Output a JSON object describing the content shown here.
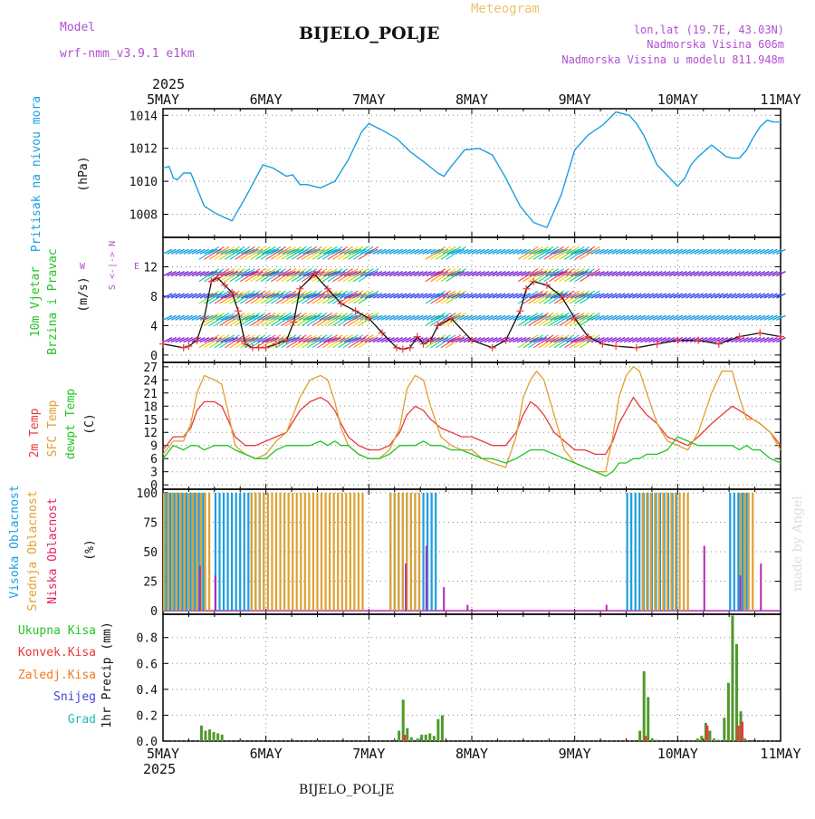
{
  "header": {
    "model_label": "Model",
    "model_name": "wrf-nmm_v3.9.1  e1km",
    "meteogram_label": "Meteogram",
    "station": "BIJELO_POLJE",
    "lonlat": "lon,lat (19.7E, 43.03N)",
    "altitude": "Nadmorska Visina 606m",
    "model_altitude": "Nadmorska Visina u modelu 811.948m",
    "footer_station": "BIJELO_POLJE",
    "watermark": "made by Angel"
  },
  "colors": {
    "pressure": "#1a9fe0",
    "temp2m": "#e83a3a",
    "sfc_temp": "#e0a030",
    "dewpoint": "#22c522",
    "high_cloud": "#1a9fe0",
    "mid_cloud": "#e0a030",
    "low_cloud": "#b02ab0",
    "precip_total": "#4f9a2a",
    "precip_conv": "#e83a3a",
    "precip_frozen": "#f07a20",
    "precip_snow": "#4444dd",
    "precip_hail": "#22bbbb",
    "header_purple": "#b050d0",
    "meteogram_title": "#f0c070"
  },
  "chart_data": [
    {
      "type": "line",
      "title": "Pritisak na nivou mora",
      "ylabel": "(hPa)",
      "x_unit": "days since 5MAY 2025 00UTC",
      "ylim": [
        1006.6,
        1014.4
      ],
      "yticks": [
        1008,
        1010,
        1012,
        1014
      ],
      "grid": true,
      "series": [
        {
          "name": "Pritisak na nivou mora",
          "x": [
            0,
            0.06,
            0.1,
            0.14,
            0.2,
            0.27,
            0.4,
            0.5,
            0.6,
            0.67,
            0.8,
            0.97,
            1.07,
            1.2,
            1.26,
            1.33,
            1.4,
            1.53,
            1.67,
            1.8,
            1.93,
            2.0,
            2.13,
            2.27,
            2.4,
            2.53,
            2.67,
            2.73,
            2.8,
            2.93,
            3.07,
            3.2,
            3.33,
            3.47,
            3.6,
            3.73,
            3.87,
            4.0,
            4.13,
            4.27,
            4.4,
            4.53,
            4.6,
            4.67,
            4.8,
            5.0,
            5.07,
            5.13,
            5.2,
            5.33,
            5.47,
            5.53,
            5.6,
            5.67,
            5.73,
            5.8,
            5.87,
            5.93,
            6.0
          ],
          "y": [
            1010.8,
            1010.9,
            1010.2,
            1010.1,
            1010.5,
            1010.5,
            1008.5,
            1008.1,
            1007.8,
            1007.6,
            1009.0,
            1011.0,
            1010.8,
            1010.3,
            1010.4,
            1009.8,
            1009.8,
            1009.6,
            1010.0,
            1011.3,
            1013.0,
            1013.5,
            1013.1,
            1012.6,
            1011.8,
            1011.2,
            1010.5,
            1010.3,
            1010.9,
            1011.9,
            1012.0,
            1011.6,
            1010.2,
            1008.5,
            1007.5,
            1007.2,
            1009.2,
            1011.9,
            1012.8,
            1013.4,
            1014.2,
            1014.0,
            1013.5,
            1012.8,
            1011.0,
            1009.7,
            1010.2,
            1011.0,
            1011.5,
            1012.2,
            1011.5,
            1011.4,
            1011.4,
            1011.9,
            1012.6,
            1013.3,
            1013.7,
            1013.6,
            1013.6
          ]
        }
      ]
    },
    {
      "type": "line",
      "title": "10m Vjetar Brzina i Pravac",
      "ylabel": "(m/s)",
      "direction_legend": "W <-|-> E, N (up), S (down)",
      "ylim": [
        -1,
        16
      ],
      "yticks": [
        0,
        4,
        8,
        12
      ],
      "extra_yticks": [
        2,
        6,
        10,
        14
      ],
      "grid": true,
      "series": [
        {
          "name": "Brzina",
          "x": [
            0,
            0.2,
            0.25,
            0.33,
            0.4,
            0.47,
            0.53,
            0.6,
            0.67,
            0.73,
            0.8,
            0.87,
            0.93,
            1.0,
            1.1,
            1.2,
            1.27,
            1.33,
            1.47,
            1.6,
            1.73,
            1.87,
            2.0,
            2.13,
            2.27,
            2.33,
            2.4,
            2.47,
            2.53,
            2.6,
            2.67,
            2.8,
            3.0,
            3.2,
            3.33,
            3.47,
            3.53,
            3.6,
            3.73,
            3.87,
            4.0,
            4.13,
            4.27,
            4.4,
            4.6,
            4.8,
            5.0,
            5.2,
            5.4,
            5.6,
            5.8,
            6.0
          ],
          "y": [
            1.5,
            1.0,
            1.2,
            2.0,
            5.0,
            10.0,
            10.5,
            9.5,
            8.5,
            6.0,
            1.5,
            1.0,
            1.0,
            1.0,
            1.5,
            2.0,
            4.5,
            9.0,
            11.0,
            9.0,
            7.0,
            6.0,
            5.0,
            3.0,
            1.0,
            0.8,
            1.0,
            2.5,
            1.5,
            2.0,
            4.0,
            5.0,
            2.0,
            1.0,
            2.0,
            6.0,
            9.0,
            10.0,
            9.5,
            8.0,
            5.0,
            2.5,
            1.5,
            1.2,
            1.0,
            1.5,
            2.0,
            2.0,
            1.5,
            2.5,
            3.0,
            2.5
          ]
        }
      ]
    },
    {
      "type": "line",
      "title": "2m Temp / SFC Temp / dewpt Temp",
      "ylabel": "(C)",
      "ylim": [
        -1,
        28
      ],
      "yticks": [
        0,
        3,
        6,
        9,
        12,
        15,
        18,
        21,
        24,
        27
      ],
      "grid": true,
      "x_common": [
        0,
        0.1,
        0.2,
        0.27,
        0.33,
        0.4,
        0.5,
        0.57,
        0.63,
        0.7,
        0.8,
        0.9,
        1.0,
        1.1,
        1.2,
        1.33,
        1.43,
        1.53,
        1.6,
        1.67,
        1.73,
        1.8,
        1.9,
        2.0,
        2.1,
        2.2,
        2.3,
        2.37,
        2.45,
        2.53,
        2.6,
        2.7,
        2.8,
        2.9,
        3.0,
        3.1,
        3.2,
        3.33,
        3.43,
        3.5,
        3.57,
        3.63,
        3.7,
        3.8,
        3.9,
        4.0,
        4.1,
        4.2,
        4.3,
        4.37,
        4.43,
        4.5,
        4.57,
        4.63,
        4.7,
        4.8,
        4.9,
        5.0,
        5.1,
        5.2,
        5.33,
        5.43,
        5.53,
        5.6,
        5.67,
        5.73,
        5.8,
        5.9,
        6.0
      ],
      "series": [
        {
          "name": "2m Temp",
          "y": [
            8,
            11,
            11,
            13,
            17,
            19,
            19,
            18,
            15,
            11,
            9,
            9,
            10,
            11,
            12,
            17,
            19,
            20,
            19,
            17,
            14,
            11,
            9,
            8,
            8,
            9,
            12,
            16,
            18,
            17,
            15,
            13,
            12,
            11,
            11,
            10,
            9,
            9,
            12,
            16,
            19,
            18,
            16,
            12,
            10,
            8,
            8,
            7,
            7,
            10,
            14,
            17,
            20,
            18,
            16,
            14,
            11,
            10,
            9,
            11,
            14,
            16,
            18,
            17,
            16,
            15,
            14,
            12,
            9
          ]
        },
        {
          "name": "SFC Temp",
          "y": [
            7,
            10,
            10,
            14,
            21,
            25,
            24,
            23,
            17,
            9,
            7,
            6,
            7,
            10,
            12,
            20,
            24,
            25,
            24,
            19,
            13,
            9,
            7,
            6,
            6,
            8,
            13,
            22,
            25,
            24,
            18,
            11,
            9,
            8,
            8,
            6,
            5,
            4,
            11,
            20,
            24,
            26,
            24,
            16,
            8,
            5,
            4,
            3,
            3,
            11,
            20,
            25,
            27,
            26,
            21,
            14,
            10,
            9,
            8,
            12,
            21,
            26,
            26,
            20,
            15,
            15,
            14,
            12,
            8
          ]
        },
        {
          "name": "dewpt Temp",
          "y": [
            6,
            9,
            8,
            9,
            9,
            8,
            9,
            9,
            9,
            8,
            7,
            6,
            6,
            8,
            9,
            9,
            9,
            10,
            9,
            10,
            9,
            9,
            7,
            6,
            6,
            7,
            9,
            9,
            9,
            10,
            9,
            9,
            8,
            8,
            7,
            6,
            6,
            5,
            6,
            7,
            8,
            8,
            8,
            7,
            6,
            5,
            4,
            3,
            2,
            3,
            5,
            5,
            6,
            6,
            7,
            7,
            8,
            11,
            10,
            9,
            9,
            9,
            9,
            8,
            9,
            8,
            8,
            6,
            5
          ]
        }
      ]
    },
    {
      "type": "bar",
      "title": "Visoka Oblacnost / Srednja Oblacnost / Niska Oblacnost",
      "ylabel": "(%)",
      "ylim": [
        -3,
        103
      ],
      "yticks": [
        0,
        25,
        50,
        75,
        100
      ],
      "grid": true,
      "series": [
        {
          "name": "Visoka Oblacnost",
          "color_key": "high_cloud",
          "blocks": [
            [
              0.02,
              0.4,
              100
            ],
            [
              0.5,
              0.85,
              100
            ],
            [
              0.85,
              1.05,
              100
            ],
            [
              2.2,
              2.65,
              100
            ],
            [
              4.5,
              5.0,
              100
            ],
            [
              5.5,
              5.7,
              100
            ]
          ]
        },
        {
          "name": "Srednja Oblacnost",
          "color_key": "mid_cloud",
          "blocks": [
            [
              0.0,
              0.45,
              100
            ],
            [
              0.85,
              1.95,
              100
            ],
            [
              2.2,
              2.5,
              100
            ],
            [
              4.65,
              5.1,
              100
            ],
            [
              5.6,
              5.75,
              100
            ]
          ]
        },
        {
          "name": "Niska Oblacnost",
          "color_key": "low_cloud",
          "spikes": [
            [
              0.35,
              38
            ],
            [
              0.5,
              30
            ],
            [
              2.35,
              40
            ],
            [
              2.55,
              55
            ],
            [
              2.72,
              20
            ],
            [
              2.95,
              5
            ],
            [
              4.3,
              5
            ],
            [
              5.25,
              55
            ],
            [
              5.6,
              30
            ],
            [
              5.8,
              40
            ]
          ]
        }
      ]
    },
    {
      "type": "bar",
      "title": "1hr Precip",
      "ylabel": "1hr Precip (mm)",
      "ylim": [
        0,
        0.98
      ],
      "yticks": [
        0.0,
        0.2,
        0.4,
        0.6,
        0.8
      ],
      "grid": true,
      "legend": [
        "Ukupna Kisa",
        "Konvek.Kisa",
        "Zaledj.Kisa",
        "Snijeg",
        "Grad"
      ],
      "series": [
        {
          "name": "Ukupna Kisa",
          "x": [
            0.36,
            0.4,
            0.44,
            0.48,
            0.52,
            0.56,
            2.28,
            2.32,
            2.36,
            2.4,
            2.46,
            2.5,
            2.54,
            2.58,
            2.62,
            2.66,
            2.7,
            4.62,
            4.66,
            4.7,
            4.74,
            4.78,
            5.18,
            5.22,
            5.26,
            5.3,
            5.34,
            5.38,
            5.44,
            5.48,
            5.52,
            5.56,
            5.6,
            5.64
          ],
          "y": [
            0.12,
            0.08,
            0.09,
            0.07,
            0.06,
            0.05,
            0.08,
            0.32,
            0.1,
            0.03,
            0.02,
            0.05,
            0.05,
            0.06,
            0.04,
            0.17,
            0.2,
            0.08,
            0.54,
            0.34,
            0.02,
            0.01,
            0.02,
            0.04,
            0.14,
            0.08,
            0.02,
            0.01,
            0.18,
            0.45,
            0.97,
            0.75,
            0.23,
            0.02
          ]
        },
        {
          "name": "Konvek.Kisa",
          "x": [
            2.32,
            4.66,
            5.26,
            5.56,
            5.6
          ],
          "y": [
            0.05,
            0.04,
            0.12,
            0.12,
            0.15
          ]
        }
      ]
    }
  ],
  "xaxis": {
    "year": "2025",
    "labels": [
      "5MAY",
      "6MAY",
      "7MAY",
      "8MAY",
      "9MAY",
      "10MAY",
      "11MAY"
    ]
  }
}
